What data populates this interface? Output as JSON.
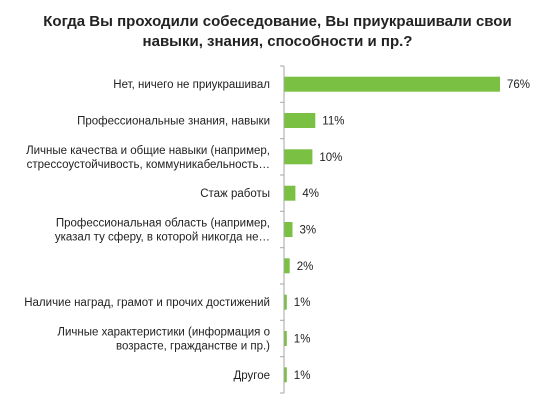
{
  "chart_data": {
    "type": "bar",
    "orientation": "horizontal",
    "title_lines": [
      "Когда Вы проходили собеседование, Вы приукрашивали свои",
      "навыки, знания, способности и пр.?"
    ],
    "categories": [
      [
        "Нет, ничего не приукрашивал"
      ],
      [
        "Профессиональные знания, навыки"
      ],
      [
        "Личные качества и общие навыки (например,",
        "стрессоустойчивость, коммуникабельность…"
      ],
      [
        "Стаж работы"
      ],
      [
        "Профессиональная область (например,",
        "указал ту сферу, в которой никогда не…"
      ],
      [],
      [
        "Наличие наград, грамот и прочих достижений"
      ],
      [
        "Личные характеристики (информация о",
        "возрасте, гражданстве и пр.)"
      ],
      [
        "Другое"
      ]
    ],
    "values": [
      76,
      11,
      10,
      4,
      3,
      2,
      1,
      1,
      1
    ],
    "value_labels": [
      "76%",
      "11%",
      "10%",
      "4%",
      "3%",
      "2%",
      "1%",
      "1%",
      "1%"
    ],
    "value_unit": "%",
    "bar_color": "#7ac143",
    "axis_color": "#a6a6a6"
  }
}
